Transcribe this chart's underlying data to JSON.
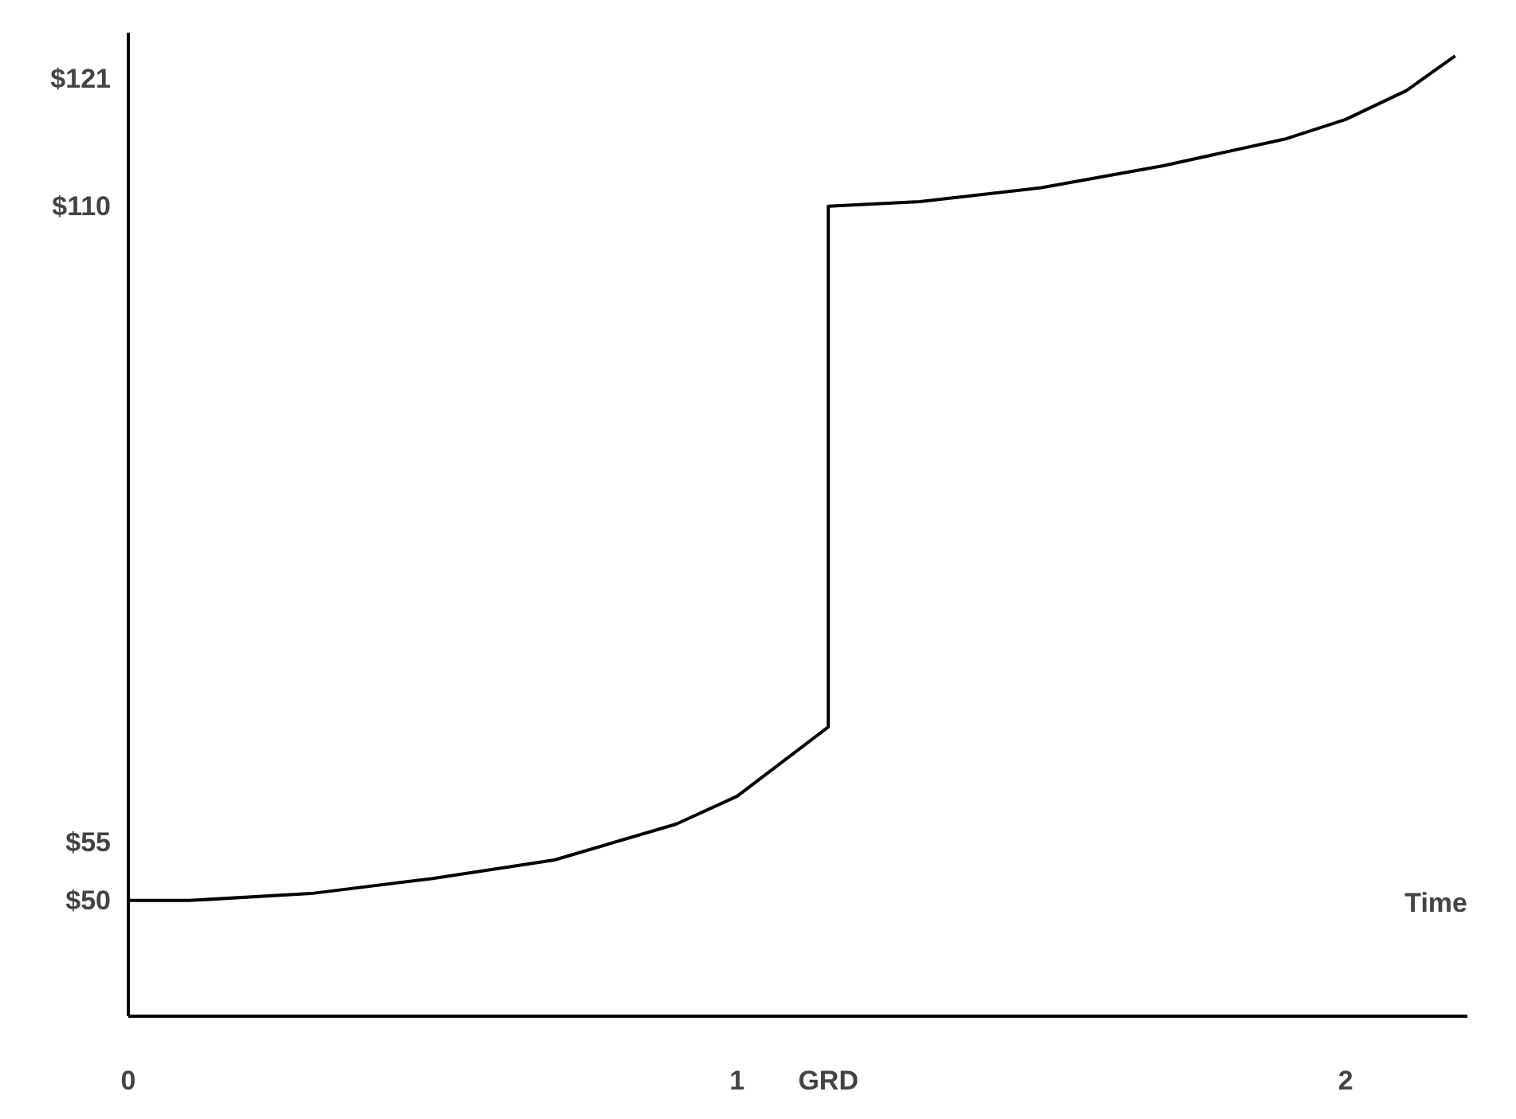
{
  "chart_data": {
    "type": "line",
    "xlabel": "Time",
    "x": [
      0,
      0.1,
      0.3,
      0.5,
      0.7,
      0.9,
      1.0,
      1.15,
      1.15,
      1.3,
      1.5,
      1.7,
      1.9,
      2.0,
      2.1,
      2.18
    ],
    "series": [
      {
        "color": "#000000",
        "values": [
          50,
          50,
          50.6,
          51.9,
          53.5,
          56.6,
          59,
          65,
          110,
          110.4,
          111.6,
          113.5,
          115.8,
          117.5,
          120,
          123
        ]
      }
    ],
    "xlim": [
      0,
      2.2
    ],
    "ylim": [
      40,
      125
    ],
    "xticks": [
      0,
      1,
      {
        "value": 1.15,
        "label": "GRD"
      },
      2
    ],
    "yticks": [
      {
        "value": 50,
        "label": "$50"
      },
      {
        "value": 55,
        "label": "$55"
      },
      {
        "value": 110,
        "label": "$110"
      },
      {
        "value": 121,
        "label": "$121"
      }
    ],
    "grid": false,
    "marker": "none",
    "line_style": "solid"
  }
}
